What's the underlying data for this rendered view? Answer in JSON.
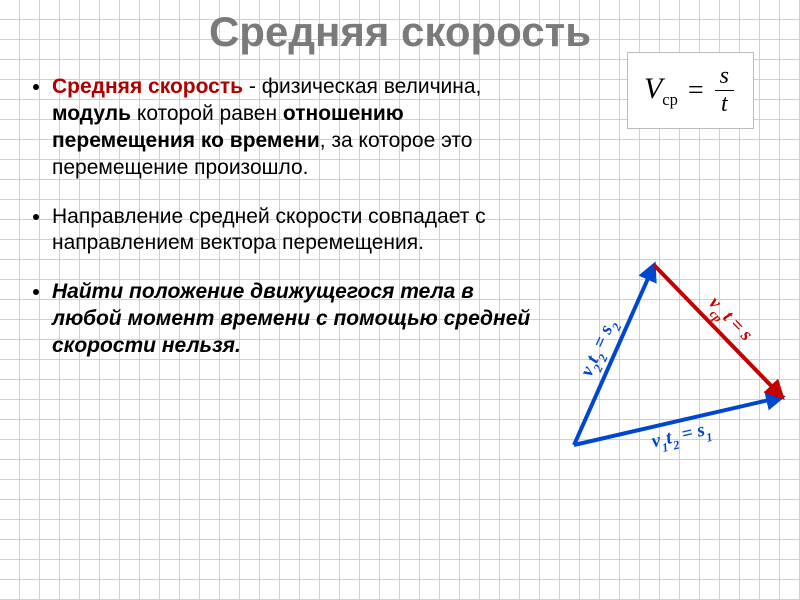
{
  "title": "Средняя скорость",
  "bullets": {
    "b1_highlight": "Средняя скорость",
    "b1_rest1": " - физическая величина, ",
    "b1_bold1": "модуль",
    "b1_rest2": " которой равен ",
    "b1_bold2": "отношению перемещения ко времени",
    "b1_rest3": ", за которое это перемещение произошло.",
    "b2": "Направление средней скорости совпадает с направлением вектора перемещения.",
    "b3": "Найти положение движущегося тела в любой момент времени с помощью средней скорости нельзя."
  },
  "formula": {
    "lhs_v": "V",
    "lhs_sub": "ср",
    "eq": "=",
    "num": "s",
    "den": "t"
  },
  "diagram": {
    "colors": {
      "blue": "#0047d0",
      "red": "#c40000"
    },
    "stroke_width": 4,
    "points": {
      "A": [
        20,
        200
      ],
      "B": [
        100,
        20
      ],
      "C": [
        228,
        152
      ]
    },
    "labels": {
      "left": "v₂t₂ = s₂",
      "bottom": "v₁t₂ = s₁",
      "right": "vсрt = s"
    }
  }
}
